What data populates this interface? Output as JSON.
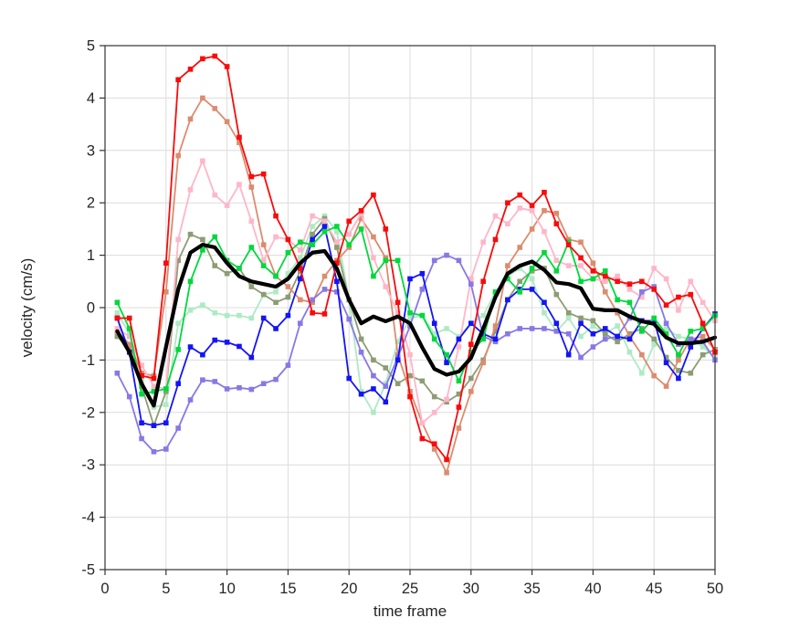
{
  "figure": {
    "background_color": "#ffffff",
    "grid_color": "#dcdcdc",
    "axis_color": "#333333",
    "tick_label_color": "#262626"
  },
  "chart_data": {
    "type": "line",
    "xlabel": "time frame",
    "ylabel": "velocity (cm/s)",
    "xlim": [
      0,
      50
    ],
    "ylim": [
      -5,
      5
    ],
    "xticks": [
      0,
      5,
      10,
      15,
      20,
      25,
      30,
      35,
      40,
      45,
      50
    ],
    "yticks": [
      -5,
      -4,
      -3,
      -2,
      -1,
      0,
      1,
      2,
      3,
      4,
      5
    ],
    "grid": true,
    "legend": "none",
    "x": [
      1,
      2,
      3,
      4,
      5,
      6,
      7,
      8,
      9,
      10,
      11,
      12,
      13,
      14,
      15,
      16,
      17,
      18,
      19,
      20,
      21,
      22,
      23,
      24,
      25,
      26,
      27,
      28,
      29,
      30,
      31,
      32,
      33,
      34,
      35,
      36,
      37,
      38,
      39,
      40,
      41,
      42,
      43,
      44,
      45,
      46,
      47,
      48,
      49,
      50
    ],
    "series": [
      {
        "name": "trace-pale-green",
        "color": "#aeeac3",
        "line_width": 1.8,
        "marker": "square",
        "values": [
          -0.1,
          -0.5,
          -1.4,
          -1.9,
          -1.85,
          -0.3,
          -0.05,
          0.05,
          -0.1,
          -0.15,
          -0.15,
          -0.2,
          0.25,
          0.3,
          0.65,
          0.95,
          1.55,
          1.75,
          1.45,
          0.15,
          -1.6,
          -2.0,
          -1.45,
          -0.65,
          -0.2,
          -0.15,
          -0.5,
          -0.4,
          -0.55,
          -0.3,
          -0.15,
          0.3,
          0.6,
          0.75,
          0.55,
          -0.1,
          -0.45,
          -0.2,
          -0.55,
          -0.35,
          -0.5,
          -0.35,
          -0.85,
          -1.25,
          -0.7,
          -0.4,
          -0.55,
          -0.6,
          -0.75,
          -0.95
        ]
      },
      {
        "name": "trace-olive-green",
        "color": "#8e9c73",
        "line_width": 1.8,
        "marker": "square",
        "values": [
          -0.55,
          -0.8,
          -1.5,
          -2.25,
          -1.6,
          0.9,
          1.4,
          1.3,
          0.8,
          0.65,
          0.75,
          0.4,
          0.25,
          0.1,
          0.2,
          0.7,
          1.4,
          1.7,
          1.15,
          0.15,
          -0.6,
          -1.0,
          -1.15,
          -1.45,
          -1.3,
          -1.4,
          -1.7,
          -1.8,
          -1.65,
          -1.35,
          -1.0,
          -0.45,
          0.15,
          0.5,
          0.7,
          0.75,
          0.25,
          -0.1,
          -0.2,
          -0.25,
          -0.5,
          -0.65,
          -0.5,
          -0.4,
          -0.6,
          -0.95,
          -1.2,
          -1.25,
          -0.9,
          -0.8
        ]
      },
      {
        "name": "trace-salmon",
        "color": "#dc8c6e",
        "line_width": 1.8,
        "marker": "square",
        "values": [
          -0.45,
          -0.7,
          -1.25,
          -1.3,
          0.3,
          2.9,
          3.6,
          4.0,
          3.8,
          3.55,
          3.15,
          2.3,
          1.2,
          0.6,
          0.4,
          0.15,
          0.1,
          0.6,
          0.9,
          1.15,
          1.7,
          1.35,
          0.95,
          -0.9,
          -1.6,
          -2.2,
          -2.7,
          -3.15,
          -2.3,
          -1.6,
          -1.05,
          -0.35,
          0.8,
          1.15,
          1.5,
          1.85,
          1.8,
          1.3,
          1.25,
          0.85,
          0.3,
          -0.1,
          -0.55,
          -0.9,
          -1.3,
          -1.5,
          -1.0,
          -0.6,
          -0.55,
          -0.8
        ]
      },
      {
        "name": "trace-pink",
        "color": "#ffb6c8",
        "line_width": 1.8,
        "marker": "square",
        "values": [
          -0.4,
          -0.55,
          -1.1,
          -1.5,
          -1.55,
          1.3,
          2.25,
          2.8,
          2.15,
          1.95,
          2.35,
          1.65,
          0.9,
          1.35,
          1.3,
          1.1,
          1.75,
          1.65,
          1.25,
          1.4,
          1.8,
          0.95,
          0.4,
          -0.1,
          -0.9,
          -2.2,
          -2.0,
          -1.75,
          -0.75,
          0.55,
          1.25,
          1.75,
          1.6,
          1.9,
          1.85,
          1.45,
          0.9,
          0.8,
          0.8,
          0.55,
          0.5,
          0.6,
          0.35,
          0.2,
          0.75,
          0.55,
          -0.05,
          0.5,
          0.1,
          -0.25
        ]
      },
      {
        "name": "trace-purple",
        "color": "#8878e6",
        "line_width": 1.8,
        "marker": "square",
        "values": [
          -1.25,
          -1.7,
          -2.5,
          -2.75,
          -2.7,
          -2.3,
          -1.76,
          -1.38,
          -1.41,
          -1.55,
          -1.53,
          -1.56,
          -1.45,
          -1.37,
          -1.1,
          -0.3,
          0.15,
          0.35,
          0.3,
          -0.22,
          -0.85,
          -1.3,
          -1.5,
          -0.95,
          -0.35,
          0.35,
          0.9,
          1.0,
          0.9,
          0.45,
          -0.55,
          -0.65,
          -0.5,
          -0.4,
          -0.4,
          -0.4,
          -0.45,
          -0.5,
          -0.95,
          -0.75,
          -0.6,
          -0.55,
          -0.2,
          0.3,
          0.4,
          -0.3,
          -0.7,
          -0.6,
          -0.65,
          -1.0
        ]
      },
      {
        "name": "trace-blue",
        "color": "#1414f5",
        "line_width": 1.8,
        "marker": "square",
        "values": [
          -0.2,
          -0.85,
          -2.2,
          -2.25,
          -2.2,
          -1.45,
          -0.75,
          -0.9,
          -0.62,
          -0.66,
          -0.74,
          -0.95,
          -0.2,
          -0.4,
          -0.15,
          0.55,
          1.3,
          1.55,
          0.5,
          -1.35,
          -1.65,
          -1.55,
          -1.8,
          -1.0,
          0.55,
          0.65,
          -0.3,
          -1.05,
          -0.6,
          -0.3,
          -0.5,
          -0.6,
          0.15,
          0.35,
          0.35,
          0.1,
          -0.3,
          -0.9,
          -0.3,
          -0.5,
          -0.4,
          -0.55,
          -0.6,
          -0.25,
          -0.25,
          -1.05,
          -1.35,
          -0.75,
          -0.4,
          -0.12
        ]
      },
      {
        "name": "trace-green",
        "color": "#00d83c",
        "line_width": 1.8,
        "marker": "square",
        "values": [
          0.1,
          -0.4,
          -1.65,
          -1.6,
          -1.55,
          -0.8,
          0.5,
          1.1,
          1.35,
          0.9,
          0.75,
          1.15,
          0.8,
          0.6,
          1.05,
          1.25,
          1.2,
          1.45,
          1.55,
          1.2,
          1.5,
          0.6,
          0.9,
          0.9,
          -0.1,
          -0.15,
          -0.6,
          -0.9,
          -1.4,
          -0.85,
          -0.6,
          0.3,
          0.55,
          0.3,
          0.75,
          1.05,
          0.7,
          1.25,
          0.5,
          0.55,
          0.7,
          0.15,
          0.1,
          -0.45,
          -0.2,
          -0.5,
          -0.9,
          -0.45,
          -0.4,
          -0.15
        ]
      },
      {
        "name": "trace-red",
        "color": "#fa0a0a",
        "line_width": 1.8,
        "marker": "square",
        "values": [
          -0.2,
          -0.2,
          -1.3,
          -1.35,
          0.85,
          4.35,
          4.55,
          4.75,
          4.8,
          4.6,
          3.25,
          2.5,
          2.55,
          1.75,
          1.3,
          0.75,
          -0.1,
          -0.12,
          0.85,
          1.65,
          1.85,
          2.15,
          1.5,
          0.1,
          -1.7,
          -2.5,
          -2.6,
          -2.9,
          -1.9,
          -0.7,
          0.5,
          1.3,
          2.0,
          2.15,
          1.95,
          2.2,
          1.6,
          1.2,
          0.95,
          0.7,
          0.6,
          0.5,
          0.45,
          0.5,
          0.35,
          0.05,
          0.2,
          0.25,
          -0.3,
          -0.85
        ]
      },
      {
        "name": "trace-mean-black",
        "color": "#000000",
        "line_width": 4.2,
        "marker": "none",
        "values": [
          -0.45,
          -0.85,
          -1.45,
          -1.87,
          -0.75,
          0.35,
          1.05,
          1.2,
          1.15,
          0.85,
          0.6,
          0.5,
          0.45,
          0.4,
          0.55,
          0.85,
          1.05,
          1.08,
          0.75,
          0.15,
          -0.3,
          -0.17,
          -0.26,
          -0.17,
          -0.3,
          -0.76,
          -1.17,
          -1.28,
          -1.22,
          -0.96,
          -0.4,
          0.2,
          0.65,
          0.8,
          0.88,
          0.72,
          0.48,
          0.45,
          0.37,
          -0.02,
          -0.05,
          -0.05,
          -0.17,
          -0.26,
          -0.31,
          -0.57,
          -0.68,
          -0.68,
          -0.65,
          -0.57
        ]
      }
    ]
  }
}
